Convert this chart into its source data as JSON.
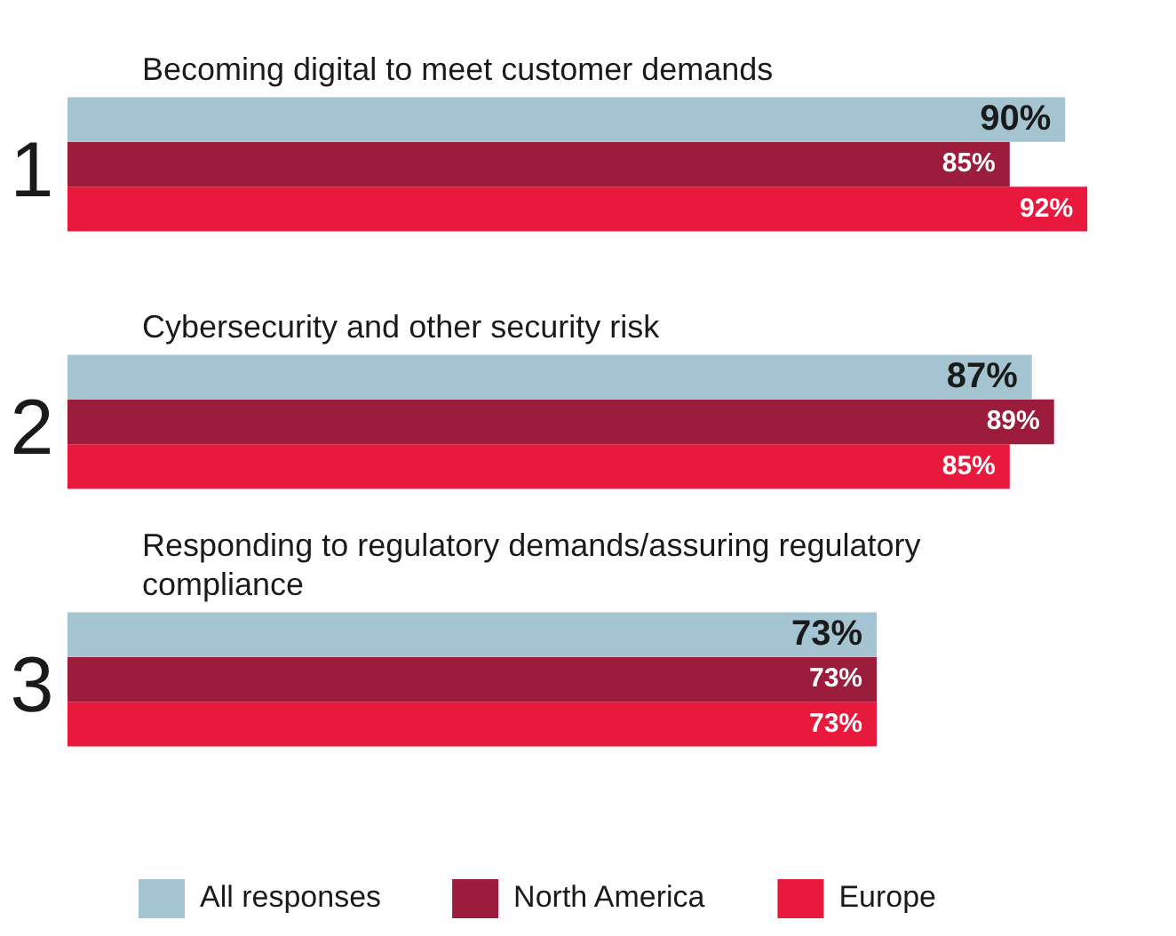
{
  "chart_data": {
    "type": "bar",
    "orientation": "horizontal",
    "categories": [
      "Becoming digital to meet customer demands",
      "Cybersecurity and other security risk",
      "Responding to regulatory demands/assuring regulatory compliance"
    ],
    "series": [
      {
        "name": "All responses",
        "color": "#a3c4d0",
        "values": [
          90,
          87,
          73
        ],
        "value_labels": [
          "90%",
          "87%",
          "73%"
        ]
      },
      {
        "name": "North America",
        "color": "#9b1c3b",
        "values": [
          85,
          89,
          73
        ],
        "value_labels": [
          "85%",
          "89%",
          "73%"
        ]
      },
      {
        "name": "Europe",
        "color": "#e8193c",
        "values": [
          92,
          85,
          73
        ],
        "value_labels": [
          "92%",
          "85%",
          "73%"
        ]
      }
    ],
    "annotations": [
      "1",
      "2",
      "3"
    ],
    "legend": "bottom"
  }
}
